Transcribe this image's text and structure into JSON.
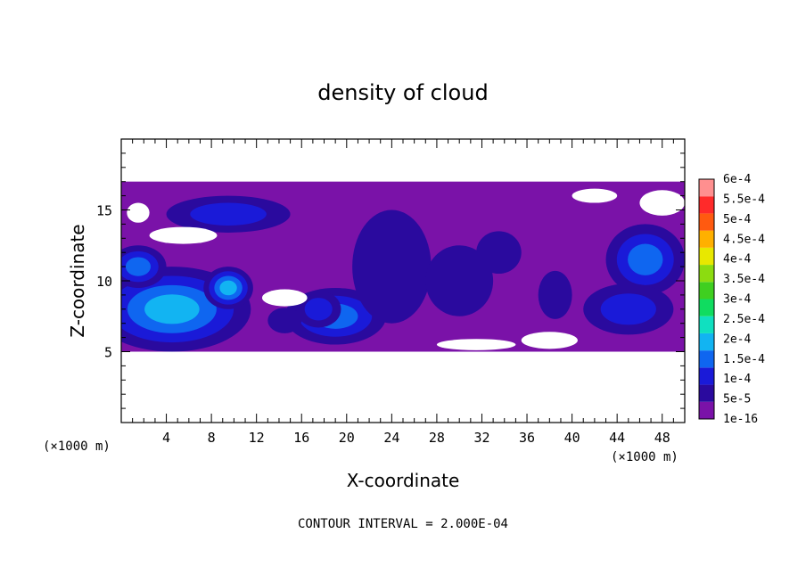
{
  "chart_data": {
    "type": "heatmap",
    "title": "density of cloud",
    "xlabel": "X-coordinate",
    "ylabel": "Z-coordinate",
    "x_unit": "(×1000 m)",
    "x_unit_right": "(×1000 m)",
    "xlim": [
      0,
      50
    ],
    "ylim": [
      0,
      20
    ],
    "x_ticks": [
      4,
      8,
      12,
      16,
      20,
      24,
      28,
      32,
      36,
      40,
      44,
      48
    ],
    "y_ticks": [
      5,
      10,
      15
    ],
    "colorbar": {
      "labels": [
        "1e-16",
        "5e-5",
        "1e-4",
        "1.5e-4",
        "2e-4",
        "2.5e-4",
        "3e-4",
        "3.5e-4",
        "4e-4",
        "4.5e-4",
        "5e-4",
        "5.5e-4",
        "6e-4"
      ],
      "colors": [
        "#7a12a8",
        "#2a0a9e",
        "#1a1ad8",
        "#0f66f0",
        "#12b4f2",
        "#10e0c0",
        "#10dc60",
        "#3fcf20",
        "#8cdc10",
        "#e8e800",
        "#ffb000",
        "#ff5a10",
        "#ff2a2a",
        "#ff8f8f"
      ]
    },
    "cloud_layer": {
      "z_bottom": 5.0,
      "z_top": 17.0
    },
    "blobs": [
      {
        "x": 4.5,
        "z": 8.0,
        "rx": 7.0,
        "rz": 3.0,
        "level": 4
      },
      {
        "x": 9.5,
        "z": 9.5,
        "rx": 2.2,
        "rz": 1.5,
        "level": 4
      },
      {
        "x": 1.5,
        "z": 11.0,
        "rx": 2.5,
        "rz": 1.5,
        "level": 3
      },
      {
        "x": 9.5,
        "z": 14.7,
        "rx": 5.5,
        "rz": 1.3,
        "level": 2
      },
      {
        "x": 19.0,
        "z": 7.5,
        "rx": 4.5,
        "rz": 2.0,
        "level": 3
      },
      {
        "x": 17.5,
        "z": 8.0,
        "rx": 2.0,
        "rz": 1.3,
        "level": 2
      },
      {
        "x": 24.0,
        "z": 11.0,
        "rx": 3.5,
        "rz": 4.0,
        "level": 1
      },
      {
        "x": 30.0,
        "z": 10.0,
        "rx": 3.0,
        "rz": 2.5,
        "level": 1
      },
      {
        "x": 33.5,
        "z": 12.0,
        "rx": 2.0,
        "rz": 1.5,
        "level": 1
      },
      {
        "x": 46.5,
        "z": 11.5,
        "rx": 3.5,
        "rz": 2.5,
        "level": 3
      },
      {
        "x": 45.0,
        "z": 8.0,
        "rx": 4.0,
        "rz": 1.8,
        "level": 2
      },
      {
        "x": 38.5,
        "z": 9.0,
        "rx": 1.5,
        "rz": 1.7,
        "level": 1
      },
      {
        "x": 14.5,
        "z": 7.2,
        "rx": 1.5,
        "rz": 0.9,
        "level": 1
      }
    ],
    "gaps": [
      {
        "x": 1.5,
        "z": 14.8,
        "rx": 1.0,
        "rz": 0.7
      },
      {
        "x": 5.5,
        "z": 13.2,
        "rx": 3.0,
        "rz": 0.6
      },
      {
        "x": 14.5,
        "z": 8.8,
        "rx": 2.0,
        "rz": 0.6
      },
      {
        "x": 48.0,
        "z": 15.5,
        "rx": 2.0,
        "rz": 0.9
      },
      {
        "x": 42.0,
        "z": 16.0,
        "rx": 2.0,
        "rz": 0.5
      },
      {
        "x": 38.0,
        "z": 5.8,
        "rx": 2.5,
        "rz": 0.6
      },
      {
        "x": 31.5,
        "z": 5.5,
        "rx": 3.5,
        "rz": 0.4
      }
    ]
  },
  "footer": {
    "contour_interval": "CONTOUR INTERVAL = 2.000E-04"
  }
}
